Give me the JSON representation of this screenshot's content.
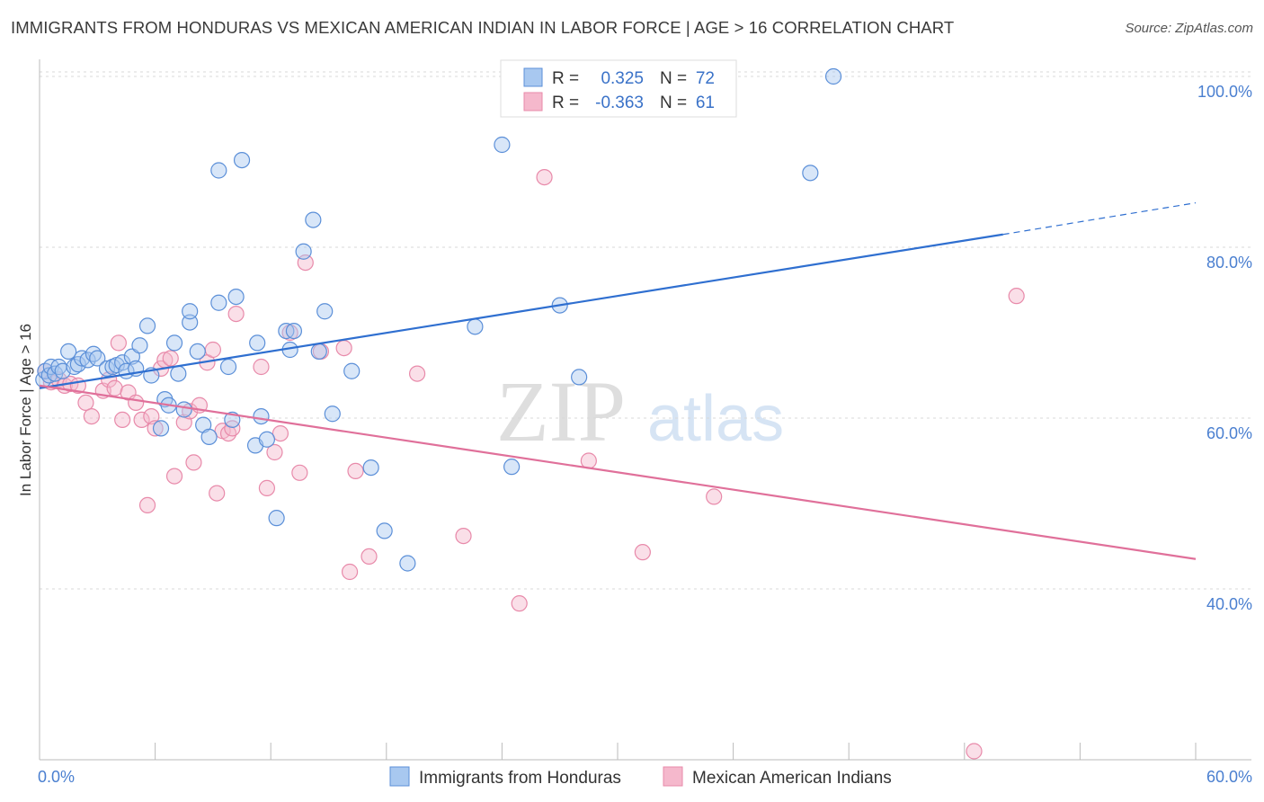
{
  "title": "IMMIGRANTS FROM HONDURAS VS MEXICAN AMERICAN INDIAN IN LABOR FORCE | AGE > 16 CORRELATION CHART",
  "source": "Source: ZipAtlas.com",
  "watermark": {
    "zip": "ZIP",
    "atlas": "atlas"
  },
  "colors": {
    "blue_fill": "#a8c8f0",
    "blue_stroke": "#5b8fd8",
    "blue_line": "#2f6fd0",
    "pink_fill": "#f5b8cc",
    "pink_stroke": "#e88aaa",
    "pink_line": "#e0709a",
    "axis_label": "#4a7fd0",
    "grid": "#d8d8d8"
  },
  "legend": {
    "rows": [
      {
        "r_label": "R =",
        "r_value": "0.325",
        "n_label": "N =",
        "n_value": "72"
      },
      {
        "r_label": "R =",
        "r_value": "-0.363",
        "n_label": "N =",
        "n_value": "61"
      }
    ]
  },
  "chart_data": {
    "type": "scatter",
    "title": "IMMIGRANTS FROM HONDURAS VS MEXICAN AMERICAN INDIAN IN LABOR FORCE | AGE > 16 CORRELATION CHART",
    "xlabel": "",
    "ylabel": "In Labor Force | Age > 16",
    "xlim": [
      0,
      60
    ],
    "ylim": [
      20,
      102
    ],
    "x_tick_labels": [
      "0.0%",
      "60.0%"
    ],
    "y_ticks": [
      40,
      60,
      80,
      100
    ],
    "y_tick_labels": [
      "40.0%",
      "60.0%",
      "80.0%",
      "100.0%"
    ],
    "grid": true,
    "legend_position": "top-center",
    "series": [
      {
        "name": "Immigrants from Honduras",
        "color": "#5b8fd8",
        "trend": {
          "x": [
            0,
            50
          ],
          "y": [
            63.5,
            81.5
          ],
          "dashed_to": [
            60,
            85.2
          ]
        },
        "points": [
          [
            0.2,
            64.5
          ],
          [
            0.3,
            65.5
          ],
          [
            0.5,
            65
          ],
          [
            0.6,
            66
          ],
          [
            0.8,
            65.2
          ],
          [
            1,
            66
          ],
          [
            1.2,
            65.5
          ],
          [
            1.5,
            67.8
          ],
          [
            1.8,
            66
          ],
          [
            2,
            66.3
          ],
          [
            2.2,
            67
          ],
          [
            2.5,
            66.8
          ],
          [
            2.8,
            67.5
          ],
          [
            3,
            67
          ],
          [
            3.5,
            65.8
          ],
          [
            3.8,
            66
          ],
          [
            4,
            66.2
          ],
          [
            4.3,
            66.5
          ],
          [
            4.5,
            65.5
          ],
          [
            4.8,
            67.2
          ],
          [
            5,
            65.8
          ],
          [
            5.2,
            68.5
          ],
          [
            5.8,
            65
          ],
          [
            5.6,
            70.8
          ],
          [
            6.3,
            58.8
          ],
          [
            6.5,
            62.2
          ],
          [
            6.7,
            61.5
          ],
          [
            7,
            68.8
          ],
          [
            7.2,
            65.2
          ],
          [
            7.5,
            61
          ],
          [
            7.8,
            71.2
          ],
          [
            7.8,
            72.5
          ],
          [
            8.2,
            67.8
          ],
          [
            8.5,
            59.2
          ],
          [
            8.8,
            57.8
          ],
          [
            9.3,
            73.5
          ],
          [
            9.3,
            89
          ],
          [
            9.8,
            66
          ],
          [
            10,
            59.8
          ],
          [
            10.2,
            74.2
          ],
          [
            10.5,
            90.2
          ],
          [
            11.2,
            56.8
          ],
          [
            11.3,
            68.8
          ],
          [
            11.5,
            60.2
          ],
          [
            11.8,
            57.5
          ],
          [
            12.3,
            48.3
          ],
          [
            12.8,
            70.2
          ],
          [
            13,
            68
          ],
          [
            13.2,
            70.2
          ],
          [
            14.2,
            83.2
          ],
          [
            13.7,
            79.5
          ],
          [
            14.5,
            67.8
          ],
          [
            14.8,
            72.5
          ],
          [
            15.2,
            60.5
          ],
          [
            16.2,
            65.5
          ],
          [
            17.2,
            54.2
          ],
          [
            17.9,
            46.8
          ],
          [
            19.1,
            43
          ],
          [
            22.6,
            70.7
          ],
          [
            24,
            92
          ],
          [
            24.5,
            54.3
          ],
          [
            27,
            73.2
          ],
          [
            28,
            64.8
          ],
          [
            40,
            88.7
          ],
          [
            41.2,
            100
          ]
        ]
      },
      {
        "name": "Mexican American Indians",
        "color": "#e88aaa",
        "trend": {
          "x": [
            0,
            60
          ],
          "y": [
            63.8,
            43.5
          ]
        },
        "points": [
          [
            0.3,
            65.5
          ],
          [
            0.6,
            64.2
          ],
          [
            1,
            64.5
          ],
          [
            1.3,
            63.8
          ],
          [
            1.6,
            64
          ],
          [
            2,
            63.8
          ],
          [
            2.4,
            61.8
          ],
          [
            2.7,
            60.2
          ],
          [
            3.3,
            63.2
          ],
          [
            3.6,
            64.5
          ],
          [
            3.9,
            63.5
          ],
          [
            4.1,
            68.8
          ],
          [
            4.3,
            59.8
          ],
          [
            4.6,
            63
          ],
          [
            5,
            61.8
          ],
          [
            5.3,
            59.8
          ],
          [
            5.8,
            60.2
          ],
          [
            6,
            58.8
          ],
          [
            6.3,
            65.8
          ],
          [
            6.5,
            66.8
          ],
          [
            5.6,
            49.8
          ],
          [
            6.8,
            67
          ],
          [
            7,
            53.2
          ],
          [
            7.5,
            59.5
          ],
          [
            7.8,
            60.8
          ],
          [
            8,
            54.8
          ],
          [
            8.3,
            61.5
          ],
          [
            8.7,
            66.5
          ],
          [
            9,
            68
          ],
          [
            9.2,
            51.2
          ],
          [
            9.5,
            58.5
          ],
          [
            9.8,
            58.2
          ],
          [
            10.2,
            72.2
          ],
          [
            10,
            58.8
          ],
          [
            11.5,
            66
          ],
          [
            11.8,
            51.8
          ],
          [
            12.2,
            56
          ],
          [
            12.5,
            58.2
          ],
          [
            13,
            70
          ],
          [
            13.5,
            53.6
          ],
          [
            13.8,
            78.2
          ],
          [
            14.6,
            67.8
          ],
          [
            15.8,
            68.2
          ],
          [
            16.1,
            42
          ],
          [
            16.4,
            53.8
          ],
          [
            17.1,
            43.8
          ],
          [
            19.6,
            65.2
          ],
          [
            22,
            46.2
          ],
          [
            24.9,
            38.3
          ],
          [
            26.2,
            88.2
          ],
          [
            28.5,
            55
          ],
          [
            31.3,
            44.3
          ],
          [
            35,
            50.8
          ],
          [
            50.7,
            74.3
          ],
          [
            48.5,
            21
          ]
        ]
      }
    ]
  },
  "bottom_legend": [
    {
      "label": "Immigrants from Honduras"
    },
    {
      "label": "Mexican American Indians"
    }
  ]
}
